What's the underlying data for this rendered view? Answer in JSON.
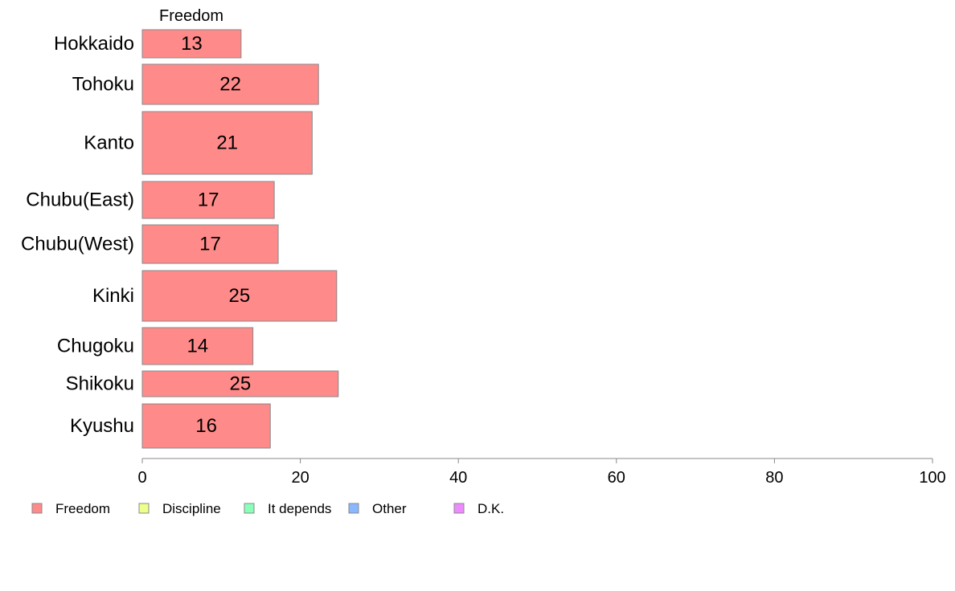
{
  "chart_data": {
    "type": "bar",
    "orientation": "horizontal",
    "stacked": true,
    "column_label": "Freedom",
    "categories": [
      "Hokkaido",
      "Tohoku",
      "Kanto",
      "Chubu(East)",
      "Chubu(West)",
      "Kinki",
      "Chugoku",
      "Shikoku",
      "Kyushu"
    ],
    "series": [
      {
        "name": "Freedom",
        "color": "#FF8A8A",
        "values": [
          12.5,
          22.3,
          21.5,
          16.7,
          17.2,
          24.6,
          14.0,
          24.8,
          16.2
        ],
        "labels": [
          "13",
          "22",
          "21",
          "17",
          "17",
          "25",
          "14",
          "25",
          "16"
        ]
      }
    ],
    "legend": [
      {
        "name": "Freedom",
        "color": "#FF8A8A"
      },
      {
        "name": "Discipline",
        "color": "#EEFF8A"
      },
      {
        "name": "It depends",
        "color": "#8AFFB8"
      },
      {
        "name": "Other",
        "color": "#8AB8FF"
      },
      {
        "name": "D.K.",
        "color": "#EE8AFF"
      }
    ],
    "xlim": [
      0,
      100
    ],
    "xticks": [
      "0",
      "20",
      "40",
      "60",
      "80",
      "100"
    ],
    "xtick_values": [
      0,
      20,
      40,
      60,
      80,
      100
    ],
    "grid": false,
    "legend_position": "bottom-left"
  }
}
